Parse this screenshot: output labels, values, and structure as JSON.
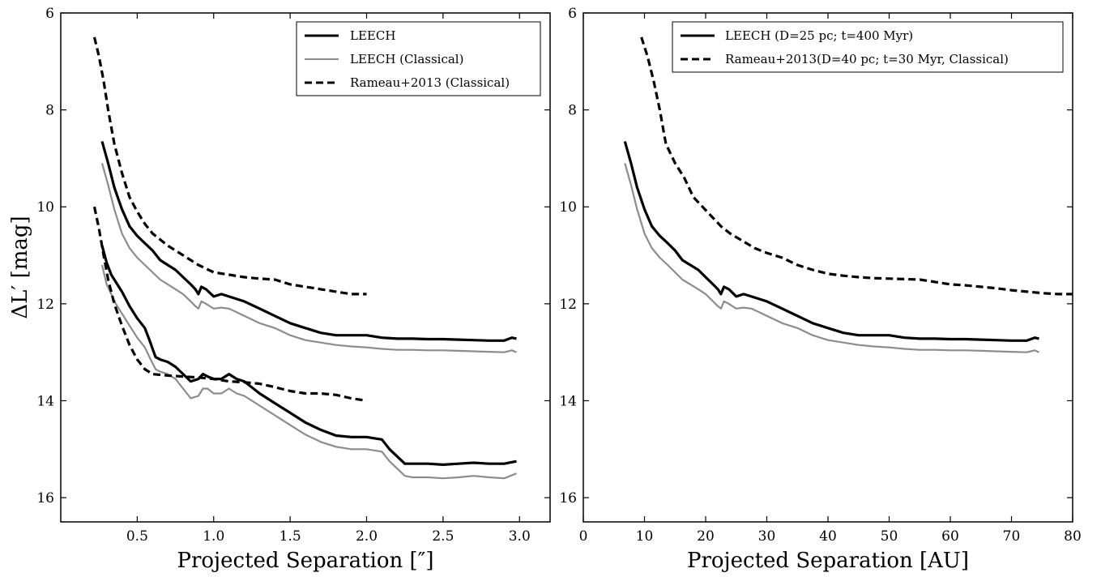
{
  "chart_data": [
    {
      "type": "line",
      "xlabel": "Projected Separation [″]",
      "ylabel": "ΔL′ [mag]",
      "xlim": [
        0.0,
        3.2
      ],
      "ylim": [
        16.5,
        6.0
      ],
      "y_inverted": true,
      "xticks": [
        "0.5",
        "1.0",
        "1.5",
        "2.0",
        "2.5",
        "3.0"
      ],
      "yticks": [
        "6",
        "8",
        "10",
        "12",
        "14",
        "16"
      ],
      "legend_position": "top-right",
      "legend": [
        {
          "label": "LEECH",
          "style": "solid",
          "color": "#000000"
        },
        {
          "label": "LEECH (Classical)",
          "style": "solid",
          "color": "#8c8c8c"
        },
        {
          "label": "Rameau+2013 (Classical)",
          "style": "dashed",
          "color": "#000000"
        }
      ],
      "series": [
        {
          "name": "LEECH",
          "style": "solid",
          "color": "#000000",
          "group": "upper",
          "x": [
            0.27,
            0.31,
            0.35,
            0.4,
            0.45,
            0.5,
            0.55,
            0.6,
            0.65,
            0.7,
            0.75,
            0.8,
            0.85,
            0.88,
            0.9,
            0.92,
            0.95,
            1.0,
            1.05,
            1.1,
            1.2,
            1.3,
            1.4,
            1.5,
            1.6,
            1.7,
            1.8,
            1.9,
            2.0,
            2.1,
            2.2,
            2.3,
            2.4,
            2.5,
            2.6,
            2.7,
            2.8,
            2.9,
            2.95,
            2.98
          ],
          "y": [
            8.65,
            9.1,
            9.6,
            10.05,
            10.4,
            10.6,
            10.75,
            10.9,
            11.1,
            11.2,
            11.3,
            11.45,
            11.6,
            11.7,
            11.8,
            11.65,
            11.7,
            11.85,
            11.8,
            11.85,
            11.95,
            12.1,
            12.25,
            12.4,
            12.5,
            12.6,
            12.65,
            12.65,
            12.65,
            12.7,
            12.72,
            12.72,
            12.73,
            12.73,
            12.74,
            12.75,
            12.76,
            12.76,
            12.7,
            12.72
          ]
        },
        {
          "name": "LEECH (Classical)",
          "style": "solid",
          "color": "#8c8c8c",
          "group": "upper",
          "x": [
            0.27,
            0.31,
            0.35,
            0.4,
            0.45,
            0.5,
            0.55,
            0.6,
            0.65,
            0.7,
            0.75,
            0.8,
            0.85,
            0.88,
            0.9,
            0.92,
            0.95,
            1.0,
            1.05,
            1.1,
            1.2,
            1.3,
            1.4,
            1.5,
            1.6,
            1.7,
            1.8,
            1.9,
            2.0,
            2.1,
            2.2,
            2.3,
            2.4,
            2.5,
            2.6,
            2.7,
            2.8,
            2.9,
            2.95,
            2.98
          ],
          "y": [
            9.1,
            9.55,
            10.05,
            10.55,
            10.85,
            11.05,
            11.2,
            11.35,
            11.5,
            11.6,
            11.7,
            11.8,
            11.95,
            12.05,
            12.1,
            11.95,
            12.0,
            12.1,
            12.08,
            12.1,
            12.25,
            12.4,
            12.5,
            12.65,
            12.75,
            12.8,
            12.85,
            12.88,
            12.9,
            12.93,
            12.95,
            12.95,
            12.96,
            12.96,
            12.97,
            12.98,
            12.99,
            13.0,
            12.96,
            13.0
          ]
        },
        {
          "name": "Rameau+2013 (Classical)",
          "style": "dashed",
          "color": "#000000",
          "group": "upper",
          "x": [
            0.22,
            0.25,
            0.28,
            0.31,
            0.35,
            0.4,
            0.45,
            0.5,
            0.55,
            0.6,
            0.7,
            0.8,
            0.9,
            1.0,
            1.1,
            1.2,
            1.3,
            1.4,
            1.5,
            1.6,
            1.7,
            1.8,
            1.9,
            2.0
          ],
          "y": [
            6.5,
            6.9,
            7.4,
            8.0,
            8.7,
            9.3,
            9.8,
            10.1,
            10.35,
            10.55,
            10.8,
            11.0,
            11.2,
            11.35,
            11.4,
            11.45,
            11.48,
            11.5,
            11.6,
            11.65,
            11.7,
            11.75,
            11.8,
            11.8
          ]
        },
        {
          "name": "LEECH",
          "style": "solid",
          "color": "#000000",
          "group": "lower",
          "x": [
            0.27,
            0.3,
            0.33,
            0.36,
            0.4,
            0.45,
            0.5,
            0.55,
            0.58,
            0.62,
            0.65,
            0.7,
            0.75,
            0.8,
            0.85,
            0.9,
            0.93,
            0.96,
            1.0,
            1.05,
            1.1,
            1.15,
            1.2,
            1.3,
            1.4,
            1.5,
            1.6,
            1.7,
            1.8,
            1.9,
            2.0,
            2.1,
            2.15,
            2.2,
            2.25,
            2.3,
            2.4,
            2.5,
            2.6,
            2.7,
            2.8,
            2.9,
            2.98
          ],
          "y": [
            10.8,
            11.15,
            11.4,
            11.55,
            11.75,
            12.05,
            12.3,
            12.5,
            12.75,
            13.1,
            13.15,
            13.2,
            13.3,
            13.45,
            13.6,
            13.55,
            13.45,
            13.5,
            13.55,
            13.55,
            13.45,
            13.55,
            13.6,
            13.85,
            14.05,
            14.25,
            14.45,
            14.6,
            14.72,
            14.75,
            14.75,
            14.8,
            15.0,
            15.15,
            15.3,
            15.3,
            15.3,
            15.32,
            15.3,
            15.28,
            15.3,
            15.3,
            15.25
          ]
        },
        {
          "name": "LEECH (Classical)",
          "style": "solid",
          "color": "#8c8c8c",
          "group": "lower",
          "x": [
            0.27,
            0.3,
            0.33,
            0.36,
            0.4,
            0.45,
            0.5,
            0.55,
            0.58,
            0.62,
            0.65,
            0.7,
            0.75,
            0.8,
            0.85,
            0.9,
            0.93,
            0.96,
            1.0,
            1.05,
            1.1,
            1.15,
            1.2,
            1.3,
            1.4,
            1.5,
            1.6,
            1.7,
            1.8,
            1.9,
            2.0,
            2.1,
            2.15,
            2.2,
            2.25,
            2.3,
            2.4,
            2.5,
            2.6,
            2.7,
            2.8,
            2.9,
            2.98
          ],
          "y": [
            11.2,
            11.6,
            11.8,
            12.0,
            12.2,
            12.45,
            12.7,
            12.9,
            13.1,
            13.35,
            13.4,
            13.45,
            13.55,
            13.75,
            13.95,
            13.9,
            13.75,
            13.75,
            13.85,
            13.85,
            13.75,
            13.85,
            13.9,
            14.1,
            14.3,
            14.5,
            14.7,
            14.85,
            14.95,
            15.0,
            15.0,
            15.05,
            15.25,
            15.4,
            15.55,
            15.58,
            15.58,
            15.6,
            15.58,
            15.55,
            15.58,
            15.6,
            15.5
          ]
        },
        {
          "name": "Rameau+2013 (Classical)",
          "style": "dashed",
          "color": "#000000",
          "group": "lower",
          "x": [
            0.22,
            0.25,
            0.28,
            0.31,
            0.35,
            0.4,
            0.45,
            0.5,
            0.55,
            0.6,
            0.7,
            0.8,
            0.9,
            1.0,
            1.1,
            1.2,
            1.3,
            1.4,
            1.5,
            1.6,
            1.7,
            1.8,
            1.9,
            2.0
          ],
          "y": [
            10.0,
            10.45,
            11.0,
            11.5,
            12.0,
            12.45,
            12.85,
            13.15,
            13.35,
            13.45,
            13.48,
            13.5,
            13.52,
            13.55,
            13.6,
            13.62,
            13.65,
            13.72,
            13.8,
            13.85,
            13.85,
            13.88,
            13.95,
            14.0
          ]
        }
      ]
    },
    {
      "type": "line",
      "xlabel": "Projected Separation [AU]",
      "ylabel": "",
      "xlim": [
        0,
        80
      ],
      "ylim": [
        16.5,
        6.0
      ],
      "y_inverted": true,
      "xticks": [
        "0",
        "10",
        "20",
        "30",
        "40",
        "50",
        "60",
        "70",
        "80"
      ],
      "yticks": [
        "6",
        "8",
        "10",
        "12",
        "14",
        "16"
      ],
      "legend_position": "top-right",
      "legend": [
        {
          "label": "LEECH (D=25 pc; t=400 Myr)",
          "style": "solid",
          "color": "#000000"
        },
        {
          "label": "Rameau+2013(D=40 pc; t=30 Myr, Classical)",
          "style": "dashed",
          "color": "#000000"
        }
      ],
      "series": [
        {
          "name": "LEECH (D=25 pc; t=400 Myr)",
          "style": "solid",
          "color": "#000000",
          "x": [
            6.8,
            7.8,
            8.8,
            10.0,
            11.2,
            12.5,
            13.8,
            15.0,
            16.2,
            17.5,
            18.8,
            20.0,
            21.2,
            22.0,
            22.5,
            23.0,
            23.8,
            25.0,
            26.2,
            27.5,
            30.0,
            32.5,
            35.0,
            37.5,
            40.0,
            42.5,
            45.0,
            47.5,
            50.0,
            52.5,
            55.0,
            57.5,
            60.0,
            62.5,
            65.0,
            67.5,
            70.0,
            72.5,
            73.8,
            74.5
          ],
          "y": [
            8.65,
            9.1,
            9.6,
            10.05,
            10.4,
            10.6,
            10.75,
            10.9,
            11.1,
            11.2,
            11.3,
            11.45,
            11.6,
            11.7,
            11.8,
            11.65,
            11.7,
            11.85,
            11.8,
            11.85,
            11.95,
            12.1,
            12.25,
            12.4,
            12.5,
            12.6,
            12.65,
            12.65,
            12.65,
            12.7,
            12.72,
            12.72,
            12.73,
            12.73,
            12.74,
            12.75,
            12.76,
            12.76,
            12.7,
            12.72
          ]
        },
        {
          "name": "LEECH (Classical)",
          "style": "solid",
          "color": "#8c8c8c",
          "x": [
            6.8,
            7.8,
            8.8,
            10.0,
            11.2,
            12.5,
            13.8,
            15.0,
            16.2,
            17.5,
            18.8,
            20.0,
            21.2,
            22.0,
            22.5,
            23.0,
            23.8,
            25.0,
            26.2,
            27.5,
            30.0,
            32.5,
            35.0,
            37.5,
            40.0,
            42.5,
            45.0,
            47.5,
            50.0,
            52.5,
            55.0,
            57.5,
            60.0,
            62.5,
            65.0,
            67.5,
            70.0,
            72.5,
            73.8,
            74.5
          ],
          "y": [
            9.1,
            9.55,
            10.05,
            10.55,
            10.85,
            11.05,
            11.2,
            11.35,
            11.5,
            11.6,
            11.7,
            11.8,
            11.95,
            12.05,
            12.1,
            11.95,
            12.0,
            12.1,
            12.08,
            12.1,
            12.25,
            12.4,
            12.5,
            12.65,
            12.75,
            12.8,
            12.85,
            12.88,
            12.9,
            12.93,
            12.95,
            12.95,
            12.96,
            12.96,
            12.97,
            12.98,
            12.99,
            13.0,
            12.96,
            13.0
          ]
        },
        {
          "name": "Rameau+2013(D=40 pc; t=30 Myr, Classical)",
          "style": "dashed",
          "color": "#000000",
          "x": [
            9.5,
            10.5,
            11.5,
            12.5,
            13.5,
            15.0,
            16.5,
            18.0,
            19.5,
            21.0,
            22.5,
            24.0,
            26.0,
            28.0,
            30.0,
            32.5,
            35.0,
            37.5,
            40.0,
            42.5,
            45.0,
            47.5,
            50.0,
            52.5,
            55.0,
            57.5,
            60.0,
            62.5,
            65.0,
            67.5,
            70.0,
            72.5,
            75.0,
            77.5,
            80.0
          ],
          "y": [
            6.5,
            6.9,
            7.4,
            8.0,
            8.7,
            9.1,
            9.4,
            9.8,
            10.0,
            10.2,
            10.4,
            10.55,
            10.7,
            10.85,
            10.95,
            11.05,
            11.2,
            11.3,
            11.38,
            11.42,
            11.45,
            11.47,
            11.48,
            11.49,
            11.5,
            11.55,
            11.6,
            11.62,
            11.65,
            11.68,
            11.72,
            11.75,
            11.78,
            11.8,
            11.8
          ]
        }
      ]
    }
  ]
}
